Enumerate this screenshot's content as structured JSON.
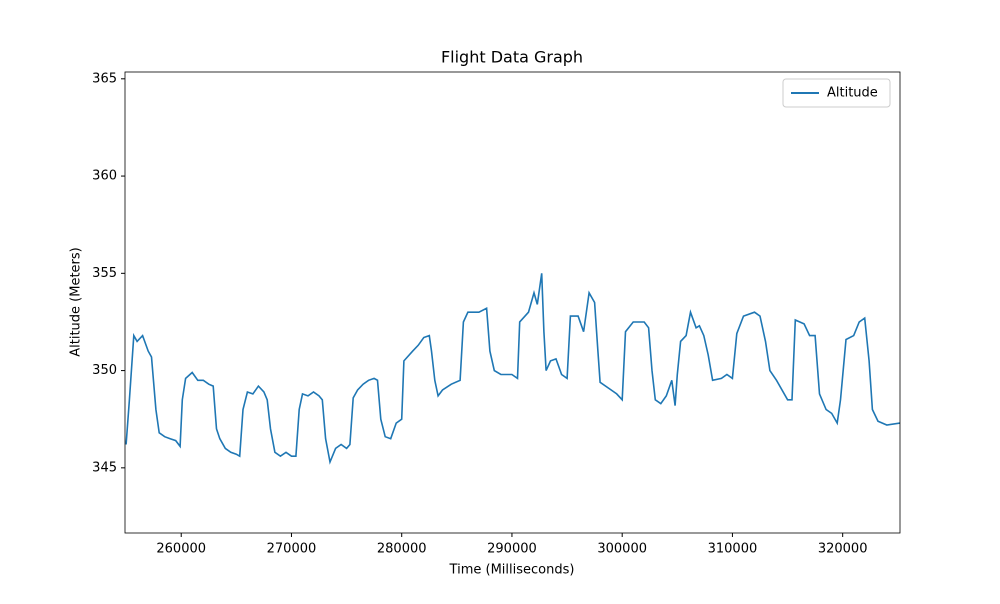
{
  "chart_data": {
    "type": "line",
    "title": "Flight Data Graph",
    "x_label": "Time (Milliseconds)",
    "y_label": "Altitude (Meters)",
    "x": [
      255000,
      255300,
      255700,
      256000,
      256500,
      257000,
      257300,
      257700,
      258000,
      258500,
      259000,
      259500,
      259900,
      260100,
      260400,
      261000,
      261500,
      262000,
      262500,
      262900,
      263200,
      263500,
      264000,
      264500,
      265000,
      265300,
      265600,
      266000,
      266500,
      267000,
      267500,
      267800,
      268100,
      268500,
      269000,
      269500,
      270000,
      270400,
      270700,
      271000,
      271500,
      272000,
      272500,
      272800,
      273100,
      273500,
      274000,
      274500,
      275000,
      275300,
      275600,
      276000,
      276500,
      277000,
      277500,
      277800,
      278100,
      278500,
      279000,
      279500,
      280000,
      280200,
      281000,
      281500,
      282000,
      282500,
      282700,
      283000,
      283300,
      283700,
      284500,
      285300,
      285600,
      286000,
      287000,
      287700,
      288000,
      288400,
      289000,
      290000,
      290500,
      290700,
      291500,
      292000,
      292300,
      292700,
      292900,
      293100,
      293500,
      294000,
      294500,
      295000,
      295300,
      296000,
      296500,
      297000,
      297500,
      297800,
      298000,
      299000,
      299500,
      300000,
      300300,
      301000,
      302000,
      302400,
      302700,
      303000,
      303500,
      304000,
      304500,
      304800,
      305000,
      305300,
      305800,
      306200,
      306700,
      307000,
      307400,
      307800,
      308200,
      309000,
      309500,
      310000,
      310400,
      311000,
      312000,
      312500,
      313000,
      313400,
      314000,
      315000,
      315400,
      315700,
      316500,
      317000,
      317500,
      317900,
      318500,
      319000,
      319500,
      319800,
      320300,
      321000,
      321500,
      322000,
      322400,
      322700,
      323200,
      324000,
      325200
    ],
    "series": [
      {
        "name": "Altitude",
        "color": "#1f77b4",
        "values": [
          346.2,
          348.5,
          351.8,
          351.5,
          351.8,
          351.0,
          350.7,
          348,
          346.8,
          346.6,
          346.5,
          346.4,
          346.1,
          348.5,
          349.6,
          349.9,
          349.5,
          349.5,
          349.3,
          349.2,
          347,
          346.5,
          346.0,
          345.8,
          345.7,
          345.6,
          348,
          348.9,
          348.8,
          349.2,
          348.9,
          348.5,
          347,
          345.8,
          345.6,
          345.8,
          345.6,
          345.6,
          348,
          348.8,
          348.7,
          348.9,
          348.7,
          348.5,
          346.5,
          345.3,
          346,
          346.2,
          346.0,
          346.2,
          348.6,
          349,
          349.3,
          349.5,
          349.6,
          349.5,
          347.5,
          346.6,
          346.5,
          347.3,
          347.5,
          350.5,
          351.0,
          351.3,
          351.7,
          351.8,
          351,
          349.5,
          348.7,
          349.0,
          349.3,
          349.5,
          352.5,
          353.0,
          353.0,
          353.2,
          351.0,
          350.0,
          349.8,
          349.8,
          349.6,
          352.5,
          353.0,
          354.0,
          353.4,
          355.0,
          352.0,
          350,
          350.5,
          350.6,
          349.8,
          349.6,
          352.8,
          352.8,
          352.0,
          354.0,
          353.5,
          351.0,
          349.4,
          349.0,
          348.8,
          348.5,
          352.0,
          352.5,
          352.5,
          352.2,
          350,
          348.5,
          348.3,
          348.7,
          349.5,
          348.2,
          349.8,
          351.5,
          351.8,
          353.0,
          352.2,
          352.3,
          351.8,
          350.8,
          349.5,
          349.6,
          349.8,
          349.6,
          351.9,
          352.8,
          353.0,
          352.8,
          351.5,
          350.0,
          349.5,
          348.5,
          348.5,
          352.6,
          352.4,
          351.8,
          351.8,
          348.8,
          348.0,
          347.8,
          347.3,
          348.5,
          351.6,
          351.8,
          352.5,
          352.7,
          350.5,
          348.0,
          347.4,
          347.2,
          347.3
        ]
      }
    ],
    "xlim": [
      254900,
      325200
    ],
    "ylim": [
      341.65,
      365.35
    ],
    "xticks": [
      260000,
      270000,
      280000,
      290000,
      300000,
      310000,
      320000
    ],
    "yticks": [
      345,
      350,
      355,
      360,
      365
    ],
    "legend": "upper right"
  }
}
